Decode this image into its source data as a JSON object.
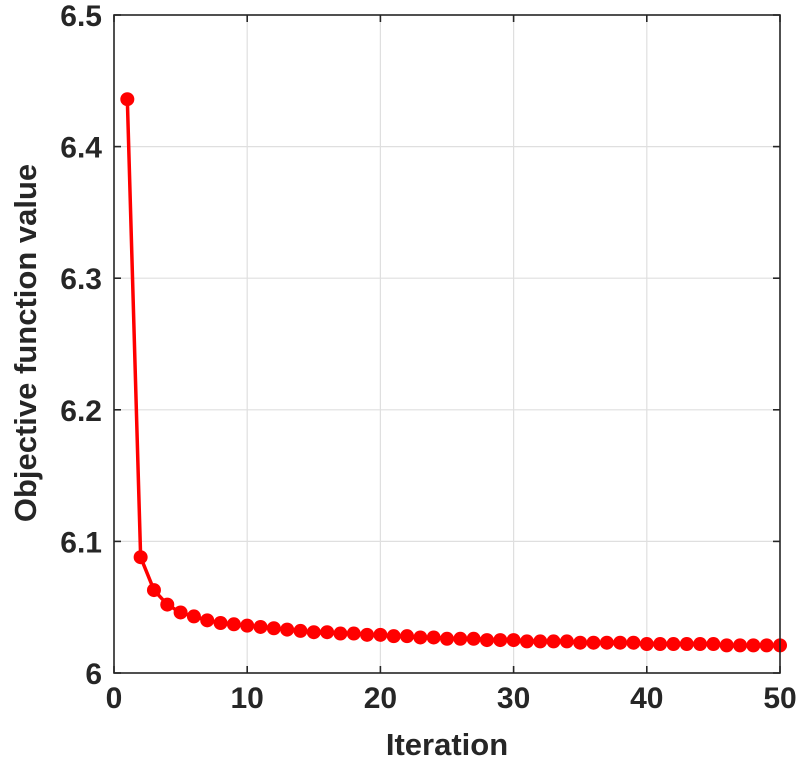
{
  "chart_data": {
    "type": "line",
    "title": "",
    "xlabel": "Iteration",
    "ylabel": "Objective function value",
    "xlim": [
      0,
      50
    ],
    "ylim": [
      6,
      6.5
    ],
    "x_ticks": [
      0,
      10,
      20,
      30,
      40,
      50
    ],
    "x_tick_labels": [
      "0",
      "10",
      "20",
      "30",
      "40",
      "50"
    ],
    "y_ticks": [
      6,
      6.1,
      6.2,
      6.3,
      6.4,
      6.5
    ],
    "y_tick_labels": [
      "6",
      "6.1",
      "6.2",
      "6.3",
      "6.4",
      "6.5"
    ],
    "grid": true,
    "marker": "circle",
    "series_color": "#ff0000",
    "series": [
      {
        "x": [
          1,
          2,
          3,
          4,
          5,
          6,
          7,
          8,
          9,
          10,
          11,
          12,
          13,
          14,
          15,
          16,
          17,
          18,
          19,
          20,
          21,
          22,
          23,
          24,
          25,
          26,
          27,
          28,
          29,
          30,
          31,
          32,
          33,
          34,
          35,
          36,
          37,
          38,
          39,
          40,
          41,
          42,
          43,
          44,
          45,
          46,
          47,
          48,
          49,
          50
        ],
        "values": [
          6.436,
          6.088,
          6.063,
          6.052,
          6.046,
          6.043,
          6.04,
          6.038,
          6.037,
          6.036,
          6.035,
          6.034,
          6.033,
          6.032,
          6.031,
          6.031,
          6.03,
          6.03,
          6.029,
          6.029,
          6.028,
          6.028,
          6.027,
          6.027,
          6.026,
          6.026,
          6.026,
          6.025,
          6.025,
          6.025,
          6.024,
          6.024,
          6.024,
          6.024,
          6.023,
          6.023,
          6.023,
          6.023,
          6.023,
          6.022,
          6.022,
          6.022,
          6.022,
          6.022,
          6.022,
          6.021,
          6.021,
          6.021,
          6.021,
          6.021
        ]
      }
    ]
  }
}
